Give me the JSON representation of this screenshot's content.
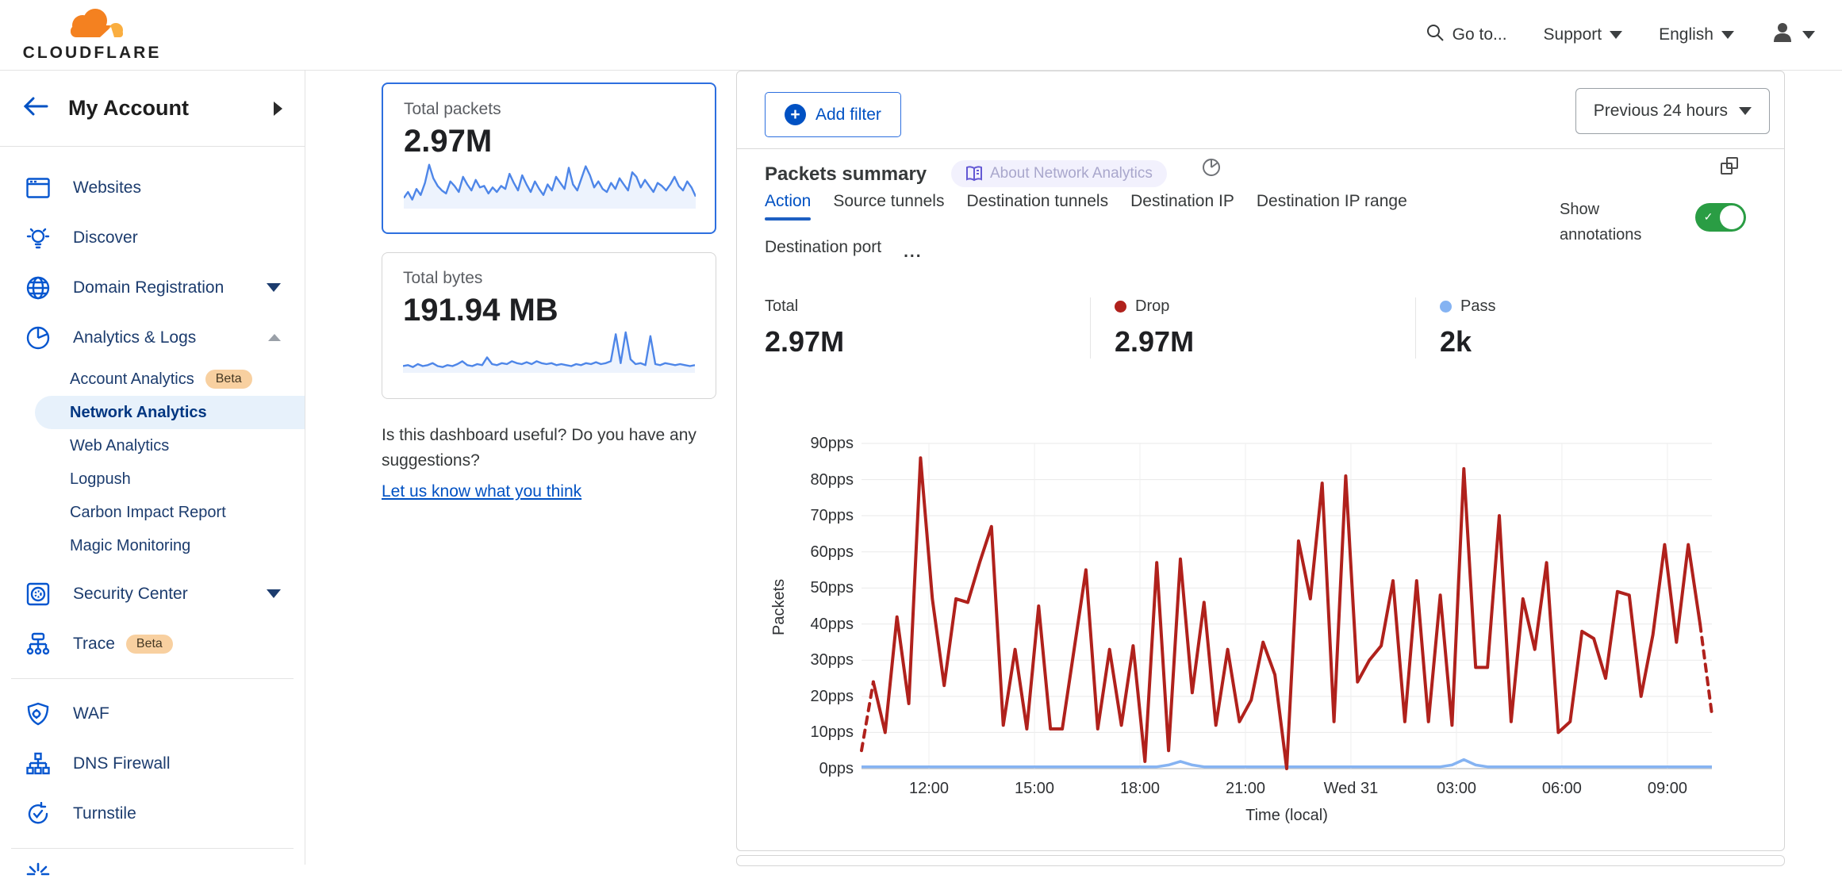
{
  "topbar": {
    "brand": "CLOUDFLARE",
    "goto": "Go to...",
    "support": "Support",
    "language": "English"
  },
  "sidebar": {
    "account_title": "My Account",
    "items": [
      {
        "label": "Websites"
      },
      {
        "label": "Discover"
      },
      {
        "label": "Domain Registration"
      },
      {
        "label": "Analytics & Logs"
      },
      {
        "label": "Account Analytics",
        "badge": "Beta"
      },
      {
        "label": "Network Analytics",
        "selected": true
      },
      {
        "label": "Web Analytics"
      },
      {
        "label": "Logpush"
      },
      {
        "label": "Carbon Impact Report"
      },
      {
        "label": "Magic Monitoring"
      },
      {
        "label": "Security Center"
      },
      {
        "label": "Trace",
        "badge": "Beta"
      },
      {
        "label": "WAF"
      },
      {
        "label": "DNS Firewall"
      },
      {
        "label": "Turnstile"
      }
    ]
  },
  "summary_cards": [
    {
      "label": "Total packets",
      "value": "2.97M",
      "selected": true
    },
    {
      "label": "Total bytes",
      "value": "191.94 MB",
      "selected": false
    }
  ],
  "feedback": {
    "question": "Is this dashboard useful? Do you have any suggestions?",
    "link": "Let us know what you think"
  },
  "main": {
    "add_filter": "Add filter",
    "time_range": "Previous 24 hours",
    "panel_title": "Packets summary",
    "about_badge": "About Network Analytics",
    "show_annotations": "Show annotations",
    "annotations_on": true,
    "tabs": [
      {
        "label": "Action",
        "active": true
      },
      {
        "label": "Source tunnels"
      },
      {
        "label": "Destination tunnels"
      },
      {
        "label": "Destination IP"
      },
      {
        "label": "Destination IP range"
      },
      {
        "label": "Destination port"
      }
    ],
    "tabs_overflow": "...",
    "stats": [
      {
        "label": "Total",
        "value": "2.97M",
        "dot": null
      },
      {
        "label": "Drop",
        "value": "2.97M",
        "dot": "#b0211c"
      },
      {
        "label": "Pass",
        "value": "2k",
        "dot": "#85b3f2"
      }
    ],
    "colors": {
      "accent_blue": "#0051c3",
      "drop_red": "#b0211c",
      "pass_blue": "#85b3f2",
      "toggle_green": "#2a9d44"
    }
  },
  "chart_data": [
    {
      "type": "line",
      "title": "Packets summary",
      "xlabel": "Time (local)",
      "ylabel": "Packets",
      "ylim": [
        0,
        90
      ],
      "grid": true,
      "y_ticks": [
        "90pps",
        "80pps",
        "70pps",
        "60pps",
        "50pps",
        "40pps",
        "30pps",
        "20pps",
        "10pps",
        "0pps"
      ],
      "x_ticks": {
        "labels": [
          "12:00",
          "15:00",
          "18:00",
          "21:00",
          "Wed 31",
          "03:00",
          "06:00",
          "09:00"
        ],
        "fracs": [
          0.0793,
          0.2034,
          0.3274,
          0.4515,
          0.5755,
          0.6996,
          0.8236,
          0.9477
        ]
      },
      "series": [
        {
          "name": "Drop",
          "color": "#b0211c",
          "width": 4,
          "dashed_head": true,
          "dashed_tail": true,
          "values": [
            5,
            24,
            10,
            42,
            18,
            86,
            47,
            23,
            47,
            46,
            57,
            67,
            12,
            33,
            11,
            45,
            11,
            11,
            33,
            55,
            11,
            33,
            12,
            34,
            2,
            57,
            5,
            58,
            21,
            46,
            12,
            33,
            13,
            19,
            35,
            26,
            0,
            63,
            47,
            79,
            13,
            81,
            24,
            30,
            34,
            52,
            13,
            52,
            13,
            48,
            12,
            83,
            28,
            28,
            70,
            13,
            47,
            33,
            57,
            10,
            13,
            38,
            36,
            25,
            49,
            48,
            20,
            37,
            62,
            35,
            62,
            40,
            15
          ]
        },
        {
          "name": "Pass",
          "color": "#85b3f2",
          "width": 3.5,
          "values": [
            0.5,
            0.5,
            0.5,
            0.5,
            0.5,
            0.5,
            0.5,
            0.5,
            0.5,
            0.5,
            0.5,
            0.5,
            0.5,
            0.5,
            0.5,
            0.5,
            0.5,
            0.5,
            0.5,
            0.5,
            0.5,
            0.5,
            0.5,
            0.5,
            0.5,
            0.5,
            1,
            2,
            1,
            0.5,
            0.5,
            0.5,
            0.5,
            0.5,
            0.5,
            0.5,
            0.5,
            0.5,
            0.5,
            0.5,
            0.5,
            0.5,
            0.5,
            0.5,
            0.5,
            0.5,
            0.5,
            0.5,
            0.5,
            0.5,
            1,
            2.5,
            1,
            0.5,
            0.5,
            0.5,
            0.5,
            0.5,
            0.5,
            0.5,
            0.5,
            0.5,
            0.5,
            0.5,
            0.5,
            0.5,
            0.5,
            0.5,
            0.5,
            0.5,
            0.5,
            0.5,
            0.5
          ]
        }
      ]
    },
    {
      "type": "line",
      "title": "Total packets sparkline",
      "ylim": [
        0,
        65
      ],
      "series": [
        {
          "name": "Total packets",
          "color": "#4e86e8",
          "values": [
            14,
            22,
            12,
            26,
            18,
            34,
            58,
            40,
            30,
            24,
            20,
            36,
            30,
            22,
            42,
            32,
            24,
            38,
            28,
            30,
            20,
            28,
            22,
            30,
            26,
            46,
            34,
            24,
            44,
            32,
            22,
            36,
            26,
            18,
            32,
            24,
            42,
            34,
            26,
            54,
            32,
            24,
            40,
            56,
            44,
            28,
            36,
            26,
            22,
            34,
            26,
            40,
            32,
            24,
            48,
            42,
            28,
            38,
            30,
            22,
            34,
            30,
            24,
            32,
            42,
            30,
            24,
            36,
            28,
            16
          ]
        }
      ]
    },
    {
      "type": "line",
      "title": "Total bytes sparkline",
      "ylim": [
        0,
        46
      ],
      "series": [
        {
          "name": "Total bytes",
          "color": "#4e86e8",
          "values": [
            7,
            8,
            6,
            9,
            7,
            8,
            10,
            7,
            6,
            8,
            7,
            9,
            12,
            8,
            7,
            9,
            8,
            16,
            9,
            8,
            10,
            9,
            12,
            10,
            9,
            11,
            9,
            12,
            10,
            9,
            10,
            8,
            9,
            8,
            7,
            9,
            8,
            10,
            9,
            11,
            9,
            10,
            12,
            40,
            10,
            42,
            14,
            9,
            10,
            8,
            38,
            9,
            8,
            10,
            9,
            8,
            9,
            8,
            7,
            8
          ]
        }
      ]
    }
  ]
}
